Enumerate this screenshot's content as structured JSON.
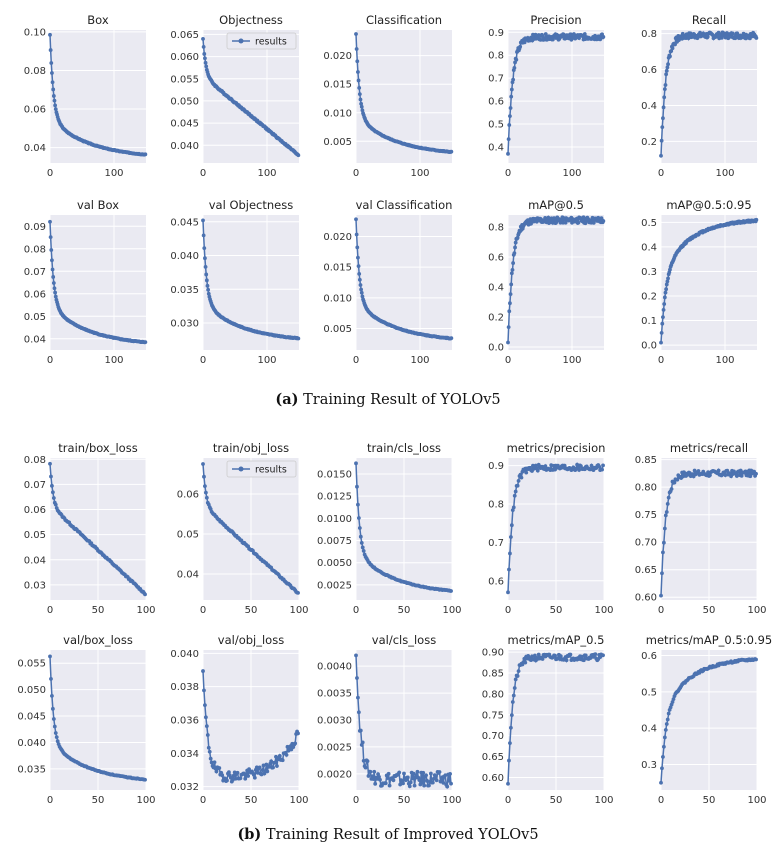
{
  "colors": {
    "plot_bg": "#eaeaf2",
    "grid": "#ffffff",
    "series": "#4c72b0"
  },
  "captions": [
    {
      "label": "(a)",
      "text": "Training Result of YOLOv5"
    },
    {
      "label": "(b)",
      "text": "Training Result of Improved YOLOv5"
    }
  ],
  "chart_data": [
    {
      "type": "line",
      "title": "Box",
      "shape": "decay",
      "x_count": 150,
      "xlim": [
        0,
        150
      ],
      "xticks": [
        0,
        100
      ],
      "yrange": [
        0.0345,
        0.0985
      ],
      "ylim": [
        0.032,
        0.101
      ],
      "yticks": [
        "0.04",
        "0.06",
        "0.08",
        "0.10"
      ]
    },
    {
      "type": "line",
      "title": "Objectness",
      "shape": "decay_linear",
      "x_count": 150,
      "xlim": [
        0,
        150
      ],
      "xticks": [
        0,
        100
      ],
      "yrange": [
        0.0378,
        0.064
      ],
      "ylim": [
        0.036,
        0.066
      ],
      "yticks": [
        "0.040",
        "0.045",
        "0.050",
        "0.055",
        "0.060",
        "0.065"
      ],
      "legend": "results"
    },
    {
      "type": "line",
      "title": "Classification",
      "shape": "decay",
      "x_count": 150,
      "xlim": [
        0,
        150
      ],
      "xticks": [
        0,
        100
      ],
      "yrange": [
        0.0025,
        0.0238
      ],
      "ylim": [
        0.0012,
        0.0245
      ],
      "yticks": [
        "0.005",
        "0.010",
        "0.015",
        "0.020"
      ]
    },
    {
      "type": "line",
      "title": "Precision",
      "shape": "rise",
      "x_count": 150,
      "xlim": [
        0,
        150
      ],
      "xticks": [
        0,
        100
      ],
      "yrange": [
        0.37,
        0.88
      ],
      "ylim": [
        0.33,
        0.91
      ],
      "yticks": [
        "0.4",
        "0.5",
        "0.6",
        "0.7",
        "0.8",
        "0.9"
      ]
    },
    {
      "type": "line",
      "title": "Recall",
      "shape": "rise",
      "x_count": 150,
      "xlim": [
        0,
        150
      ],
      "xticks": [
        0,
        100
      ],
      "yrange": [
        0.12,
        0.79
      ],
      "ylim": [
        0.08,
        0.82
      ],
      "yticks": [
        "0.2",
        "0.4",
        "0.6",
        "0.8"
      ]
    },
    {
      "type": "line",
      "title": "val Box",
      "shape": "decay",
      "x_count": 150,
      "xlim": [
        0,
        150
      ],
      "xticks": [
        0,
        100
      ],
      "yrange": [
        0.0368,
        0.092
      ],
      "ylim": [
        0.035,
        0.095
      ],
      "yticks": [
        "0.04",
        "0.05",
        "0.06",
        "0.07",
        "0.08",
        "0.09"
      ]
    },
    {
      "type": "line",
      "title": "val Objectness",
      "shape": "decay",
      "x_count": 150,
      "xlim": [
        0,
        150
      ],
      "xticks": [
        0,
        100
      ],
      "yrange": [
        0.0272,
        0.0452
      ],
      "ylim": [
        0.026,
        0.046
      ],
      "yticks": [
        "0.030",
        "0.035",
        "0.040",
        "0.045"
      ]
    },
    {
      "type": "line",
      "title": "val Classification",
      "shape": "decay",
      "x_count": 150,
      "xlim": [
        0,
        150
      ],
      "xticks": [
        0,
        100
      ],
      "yrange": [
        0.0028,
        0.0228
      ],
      "ylim": [
        0.0015,
        0.0235
      ],
      "yticks": [
        "0.005",
        "0.010",
        "0.015",
        "0.020"
      ]
    },
    {
      "type": "line",
      "title": "mAP@0.5",
      "shape": "rise",
      "x_count": 150,
      "xlim": [
        0,
        150
      ],
      "xticks": [
        0,
        100
      ],
      "yrange": [
        0.03,
        0.845
      ],
      "ylim": [
        -0.02,
        0.88
      ],
      "yticks": [
        "0.0",
        "0.2",
        "0.4",
        "0.6",
        "0.8"
      ]
    },
    {
      "type": "line",
      "title": "mAP@0.5:0.95",
      "shape": "rise_slow",
      "x_count": 150,
      "xlim": [
        0,
        150
      ],
      "xticks": [
        0,
        100
      ],
      "yrange": [
        0.01,
        0.515
      ],
      "ylim": [
        -0.02,
        0.53
      ],
      "yticks": [
        "0.0",
        "0.1",
        "0.2",
        "0.3",
        "0.4",
        "0.5"
      ]
    },
    {
      "type": "line",
      "title": "train/box_loss",
      "shape": "decay_linear",
      "x_count": 100,
      "xlim": [
        0,
        100
      ],
      "xticks": [
        0,
        50,
        100
      ],
      "yrange": [
        0.0265,
        0.0782
      ],
      "ylim": [
        0.024,
        0.0805
      ],
      "yticks": [
        "0.03",
        "0.04",
        "0.05",
        "0.06",
        "0.07",
        "0.08"
      ]
    },
    {
      "type": "line",
      "title": "train/obj_loss",
      "shape": "decay_linear",
      "x_count": 100,
      "xlim": [
        0,
        100
      ],
      "xticks": [
        0,
        50,
        100
      ],
      "yrange": [
        0.0352,
        0.0675
      ],
      "ylim": [
        0.0335,
        0.069
      ],
      "yticks": [
        "0.04",
        "0.05",
        "0.06"
      ],
      "legend": "results"
    },
    {
      "type": "line",
      "title": "train/cls_loss",
      "shape": "decay",
      "x_count": 100,
      "xlim": [
        0,
        100
      ],
      "xticks": [
        0,
        50,
        100
      ],
      "yrange": [
        0.0014,
        0.0162
      ],
      "ylim": [
        0.0008,
        0.0168
      ],
      "yticks": [
        "0.0025",
        "0.0050",
        "0.0075",
        "0.0100",
        "0.0125",
        "0.0150"
      ]
    },
    {
      "type": "line",
      "title": "metrics/precision",
      "shape": "rise",
      "x_count": 100,
      "xlim": [
        0,
        100
      ],
      "xticks": [
        0,
        50,
        100
      ],
      "yrange": [
        0.57,
        0.895
      ],
      "ylim": [
        0.55,
        0.92
      ],
      "yticks": [
        "0.6",
        "0.7",
        "0.8",
        "0.9"
      ]
    },
    {
      "type": "line",
      "title": "metrics/recall",
      "shape": "rise",
      "x_count": 100,
      "xlim": [
        0,
        100
      ],
      "xticks": [
        0,
        50,
        100
      ],
      "yrange": [
        0.603,
        0.825
      ],
      "ylim": [
        0.595,
        0.853
      ],
      "yticks": [
        "0.60",
        "0.65",
        "0.70",
        "0.75",
        "0.80",
        "0.85"
      ]
    },
    {
      "type": "line",
      "title": "val/box_loss",
      "shape": "decay",
      "x_count": 100,
      "xlim": [
        0,
        100
      ],
      "xticks": [
        0,
        50,
        100
      ],
      "yrange": [
        0.0323,
        0.0563
      ],
      "ylim": [
        0.031,
        0.0575
      ],
      "yticks": [
        "0.035",
        "0.040",
        "0.045",
        "0.050",
        "0.055"
      ]
    },
    {
      "type": "line",
      "title": "val/obj_loss",
      "shape": "u_curve",
      "x_count": 100,
      "xlim": [
        0,
        100
      ],
      "xticks": [
        0,
        50,
        100
      ],
      "yrange": [
        0.0326,
        0.0398
      ],
      "ylim": [
        0.0318,
        0.0402
      ],
      "yticks": [
        "0.032",
        "0.034",
        "0.036",
        "0.038",
        "0.040"
      ]
    },
    {
      "type": "line",
      "title": "val/cls_loss",
      "shape": "decay_noisy",
      "x_count": 100,
      "xlim": [
        0,
        100
      ],
      "xticks": [
        0,
        50,
        100
      ],
      "yrange": [
        0.0019,
        0.0042
      ],
      "ylim": [
        0.0017,
        0.0043
      ],
      "yticks": [
        "0.0020",
        "0.0025",
        "0.0030",
        "0.0035",
        "0.0040"
      ]
    },
    {
      "type": "line",
      "title": "metrics/mAP_0.5",
      "shape": "rise",
      "x_count": 100,
      "xlim": [
        0,
        100
      ],
      "xticks": [
        0,
        50,
        100
      ],
      "yrange": [
        0.585,
        0.888
      ],
      "ylim": [
        0.57,
        0.905
      ],
      "yticks": [
        "0.60",
        "0.65",
        "0.70",
        "0.75",
        "0.80",
        "0.85",
        "0.90"
      ]
    },
    {
      "type": "line",
      "title": "metrics/mAP_0.5:0.95",
      "shape": "rise_slow",
      "x_count": 100,
      "xlim": [
        0,
        100
      ],
      "xticks": [
        0,
        50,
        100
      ],
      "yrange": [
        0.25,
        0.595
      ],
      "ylim": [
        0.23,
        0.615
      ],
      "yticks": [
        "0.3",
        "0.4",
        "0.5",
        "0.6"
      ]
    }
  ]
}
